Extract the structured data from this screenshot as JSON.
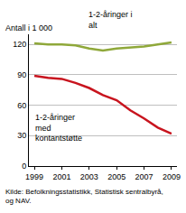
{
  "chart_data": {
    "type": "line",
    "ylabel": "Antall i 1 000",
    "source": [
      "Kilde: Befolkningsstatistikk, Statistisk sentralbyrå,",
      "og NAV."
    ],
    "x": [
      1999,
      2000,
      2001,
      2002,
      2003,
      2004,
      2005,
      2006,
      2007,
      2008,
      2009
    ],
    "series": [
      {
        "name": "1-2-åringer i alt",
        "color": "#8fa83a",
        "values": [
          121,
          120,
          120,
          119,
          116,
          114,
          116,
          117,
          118,
          120,
          122
        ]
      },
      {
        "name": "1-2-åringer med kontantstøtte",
        "color": "#c8141e",
        "values": [
          89,
          87,
          86,
          82,
          77,
          70,
          65,
          55,
          47,
          38,
          32
        ]
      }
    ],
    "xlim": [
      1998.6,
      2009.4
    ],
    "xticks": [
      1999,
      2001,
      2003,
      2005,
      2007,
      2009
    ],
    "ylim": [
      0,
      130
    ],
    "yticks": [
      0,
      30,
      60,
      90,
      120
    ],
    "grid": true
  }
}
